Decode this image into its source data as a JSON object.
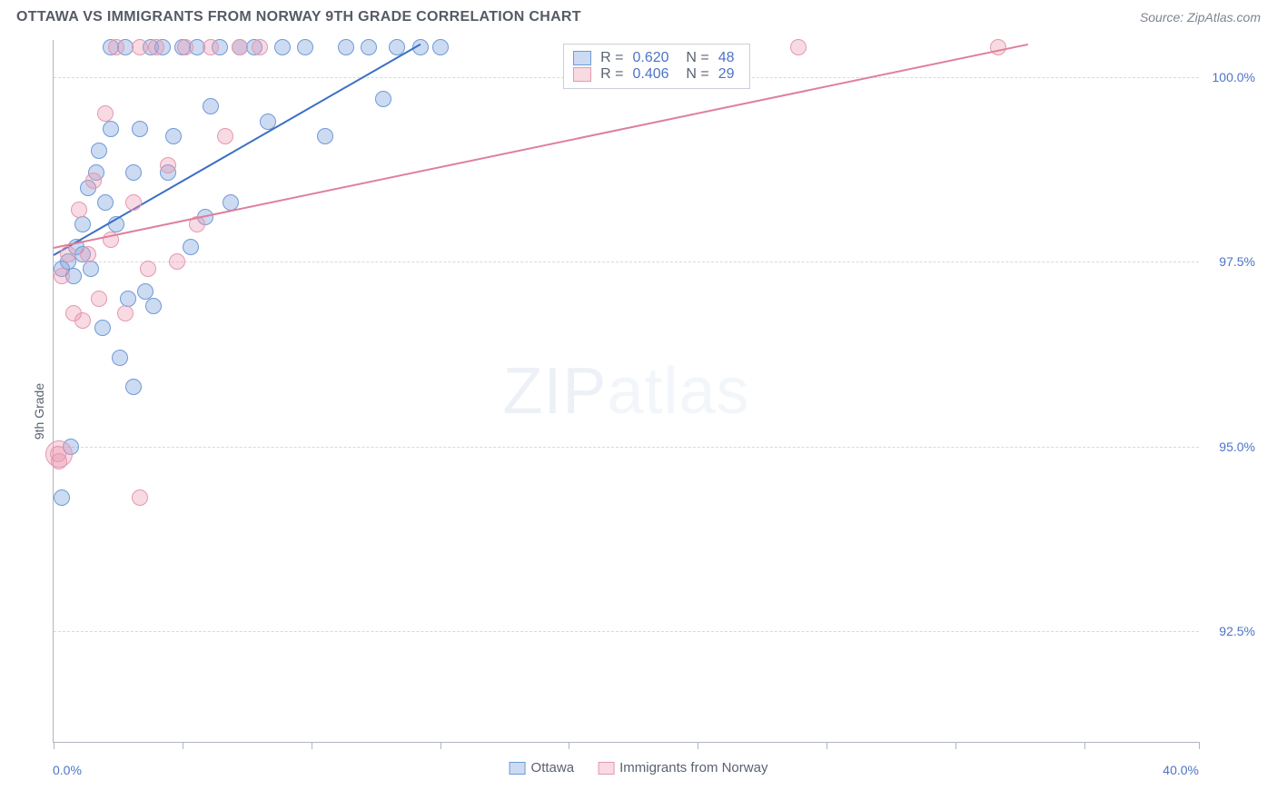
{
  "title": "OTTAWA VS IMMIGRANTS FROM NORWAY 9TH GRADE CORRELATION CHART",
  "source": "Source: ZipAtlas.com",
  "ylabel": "9th Grade",
  "watermark_bold": "ZIP",
  "watermark_thin": "atlas",
  "chart": {
    "type": "scatter",
    "background_color": "#ffffff",
    "grid_color": "#d5d9df",
    "axis_color": "#b0b6bf",
    "text_color": "#5a6270",
    "value_color": "#4d74c7",
    "xlim": [
      0,
      40
    ],
    "ylim": [
      91,
      100.5
    ],
    "xticks": [
      0,
      4.5,
      9,
      13.5,
      18,
      22.5,
      27,
      31.5,
      36,
      40
    ],
    "xaxis_left": "0.0%",
    "xaxis_right": "40.0%",
    "yticks": [
      {
        "v": 100.0,
        "label": "100.0%"
      },
      {
        "v": 97.5,
        "label": "97.5%"
      },
      {
        "v": 95.0,
        "label": "95.0%"
      },
      {
        "v": 92.5,
        "label": "92.5%"
      }
    ],
    "legend_box": {
      "left_pct": 44.5,
      "top_pct": 0.5
    },
    "series": [
      {
        "key": "ottawa",
        "name": "Ottawa",
        "fill": "rgba(120,160,220,0.38)",
        "stroke": "#6f9ad6",
        "line_color": "#3a6fc5",
        "r_value": "0.620",
        "n_value": "48",
        "marker_radius": 9,
        "points": [
          [
            0.3,
            97.4
          ],
          [
            0.5,
            97.5
          ],
          [
            0.7,
            97.3
          ],
          [
            0.8,
            97.7
          ],
          [
            1.0,
            98.0
          ],
          [
            1.0,
            97.6
          ],
          [
            1.2,
            98.5
          ],
          [
            1.3,
            97.4
          ],
          [
            1.5,
            98.7
          ],
          [
            1.6,
            99.0
          ],
          [
            1.7,
            96.6
          ],
          [
            1.8,
            98.3
          ],
          [
            2.0,
            99.3
          ],
          [
            2.0,
            100.4
          ],
          [
            2.2,
            98.0
          ],
          [
            2.3,
            96.2
          ],
          [
            2.5,
            100.4
          ],
          [
            2.6,
            97.0
          ],
          [
            2.8,
            98.7
          ],
          [
            2.8,
            95.8
          ],
          [
            3.0,
            99.3
          ],
          [
            3.2,
            97.1
          ],
          [
            3.4,
            100.4
          ],
          [
            3.5,
            96.9
          ],
          [
            3.8,
            100.4
          ],
          [
            4.0,
            98.7
          ],
          [
            4.2,
            99.2
          ],
          [
            4.5,
            100.4
          ],
          [
            4.8,
            97.7
          ],
          [
            5.0,
            100.4
          ],
          [
            5.3,
            98.1
          ],
          [
            5.5,
            99.6
          ],
          [
            5.8,
            100.4
          ],
          [
            6.2,
            98.3
          ],
          [
            6.5,
            100.4
          ],
          [
            7.0,
            100.4
          ],
          [
            7.5,
            99.4
          ],
          [
            8.0,
            100.4
          ],
          [
            8.8,
            100.4
          ],
          [
            9.5,
            99.2
          ],
          [
            10.2,
            100.4
          ],
          [
            11.0,
            100.4
          ],
          [
            11.5,
            99.7
          ],
          [
            12.0,
            100.4
          ],
          [
            12.8,
            100.4
          ],
          [
            13.5,
            100.4
          ],
          [
            0.3,
            94.3
          ],
          [
            0.6,
            95.0
          ]
        ],
        "trend": {
          "x1": 0.0,
          "y1": 97.6,
          "x2": 12.8,
          "y2": 100.45
        }
      },
      {
        "key": "norway",
        "name": "Immigrants from Norway",
        "fill": "rgba(235,150,175,0.35)",
        "stroke": "#e598ae",
        "line_color": "#de7f9b",
        "r_value": "0.406",
        "n_value": "29",
        "marker_radius": 9,
        "points": [
          [
            0.3,
            97.3
          ],
          [
            0.5,
            97.6
          ],
          [
            0.7,
            96.8
          ],
          [
            0.9,
            98.2
          ],
          [
            1.0,
            96.7
          ],
          [
            1.2,
            97.6
          ],
          [
            1.4,
            98.6
          ],
          [
            1.6,
            97.0
          ],
          [
            1.8,
            99.5
          ],
          [
            2.0,
            97.8
          ],
          [
            2.2,
            100.4
          ],
          [
            2.5,
            96.8
          ],
          [
            2.8,
            98.3
          ],
          [
            3.0,
            100.4
          ],
          [
            3.0,
            94.3
          ],
          [
            3.3,
            97.4
          ],
          [
            3.6,
            100.4
          ],
          [
            4.0,
            98.8
          ],
          [
            4.3,
            97.5
          ],
          [
            4.6,
            100.4
          ],
          [
            5.0,
            98.0
          ],
          [
            5.5,
            100.4
          ],
          [
            6.0,
            99.2
          ],
          [
            6.5,
            100.4
          ],
          [
            7.2,
            100.4
          ],
          [
            0.2,
            94.8
          ],
          [
            0.15,
            94.9
          ],
          [
            26.0,
            100.4
          ],
          [
            33.0,
            100.4
          ]
        ],
        "big_points": [
          [
            0.2,
            94.9,
            15
          ]
        ],
        "trend": {
          "x1": 0.0,
          "y1": 97.7,
          "x2": 34.0,
          "y2": 100.45
        }
      }
    ]
  }
}
